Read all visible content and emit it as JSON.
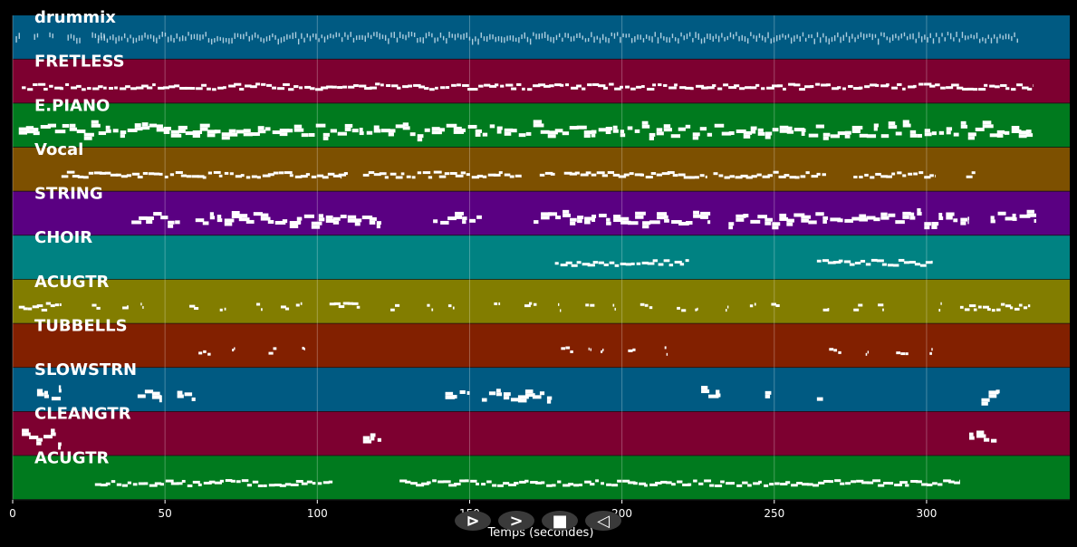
{
  "chart_data": {
    "type": "piano-roll",
    "xlabel": "Temps (secondes)",
    "xlim": [
      0,
      347
    ],
    "xticks": [
      0,
      50,
      100,
      150,
      200,
      250,
      300
    ],
    "grid": true,
    "tracks": [
      {
        "name": "drummix",
        "color": "#005a82",
        "density": "dense",
        "segments": [
          [
            1,
            3
          ],
          [
            7,
            9
          ],
          [
            12,
            14
          ],
          [
            18,
            22
          ],
          [
            26,
            30
          ],
          [
            28,
            330
          ]
        ]
      },
      {
        "name": "FRETLESS",
        "color": "#7d0030",
        "density": "line",
        "segments": [
          [
            3,
            335
          ]
        ]
      },
      {
        "name": "E.PIANO",
        "color": "#007a1e",
        "density": "blocks",
        "segments": [
          [
            2,
            335
          ]
        ]
      },
      {
        "name": "Vocal",
        "color": "#7d5000",
        "density": "line",
        "segments": [
          [
            16,
            110
          ],
          [
            107,
            108
          ],
          [
            115,
            167
          ],
          [
            173,
            178
          ],
          [
            181,
            228
          ],
          [
            230,
            267
          ],
          [
            276,
            303
          ],
          [
            313,
            316
          ]
        ]
      },
      {
        "name": "STRING",
        "color": "#5a0082",
        "density": "blocks",
        "segments": [
          [
            39,
            55
          ],
          [
            60,
            121
          ],
          [
            138,
            154
          ],
          [
            171,
            229
          ],
          [
            235,
            314
          ],
          [
            321,
            336
          ]
        ]
      },
      {
        "name": "CHOIR",
        "color": "#008282",
        "density": "line",
        "segments": [
          [
            178,
            222
          ],
          [
            264,
            302
          ]
        ]
      },
      {
        "name": "ACUGTR",
        "color": "#827d00",
        "density": "sparse",
        "segments": [
          [
            2,
            16
          ],
          [
            26,
            29
          ],
          [
            36,
            38
          ],
          [
            42,
            43
          ],
          [
            58,
            61
          ],
          [
            68,
            70
          ],
          [
            80,
            82
          ],
          [
            88,
            91
          ],
          [
            93,
            95
          ],
          [
            104,
            114
          ],
          [
            124,
            127
          ],
          [
            136,
            138
          ],
          [
            143,
            145
          ],
          [
            158,
            160
          ],
          [
            168,
            172
          ],
          [
            179,
            180
          ],
          [
            188,
            191
          ],
          [
            197,
            198
          ],
          [
            206,
            210
          ],
          [
            218,
            221
          ],
          [
            224,
            225
          ],
          [
            234,
            235
          ],
          [
            242,
            244
          ],
          [
            249,
            252
          ],
          [
            266,
            268
          ],
          [
            276,
            279
          ],
          [
            284,
            286
          ],
          [
            304,
            305
          ],
          [
            311,
            334
          ]
        ]
      },
      {
        "name": "TUBBELLS",
        "color": "#822000",
        "density": "sparse",
        "segments": [
          [
            61,
            65
          ],
          [
            72,
            73
          ],
          [
            84,
            87
          ],
          [
            95,
            96
          ],
          [
            180,
            184
          ],
          [
            189,
            190
          ],
          [
            193,
            194
          ],
          [
            202,
            205
          ],
          [
            214,
            215
          ],
          [
            268,
            272
          ],
          [
            280,
            281
          ],
          [
            290,
            294
          ],
          [
            301,
            302
          ]
        ]
      },
      {
        "name": "SLOWSTRN",
        "color": "#005a82",
        "density": "blocks",
        "segments": [
          [
            8,
            16
          ],
          [
            41,
            49
          ],
          [
            54,
            60
          ],
          [
            142,
            150
          ],
          [
            154,
            177
          ],
          [
            226,
            233
          ],
          [
            247,
            249
          ],
          [
            264,
            266
          ],
          [
            318,
            324
          ]
        ]
      },
      {
        "name": "CLEANGTR",
        "color": "#7d0030",
        "density": "blocks",
        "segments": [
          [
            3,
            16
          ],
          [
            115,
            121
          ],
          [
            314,
            323
          ]
        ]
      },
      {
        "name": "ACUGTR",
        "color": "#007a1e",
        "density": "line",
        "segments": [
          [
            27,
            105
          ],
          [
            127,
            311
          ]
        ]
      }
    ]
  },
  "controls": {
    "buttons": [
      {
        "name": "play-button",
        "glyph": "⊳"
      },
      {
        "name": "forward-button",
        "glyph": ">"
      },
      {
        "name": "stop-button",
        "glyph": "■"
      },
      {
        "name": "rewind-button",
        "glyph": "◁"
      }
    ]
  }
}
